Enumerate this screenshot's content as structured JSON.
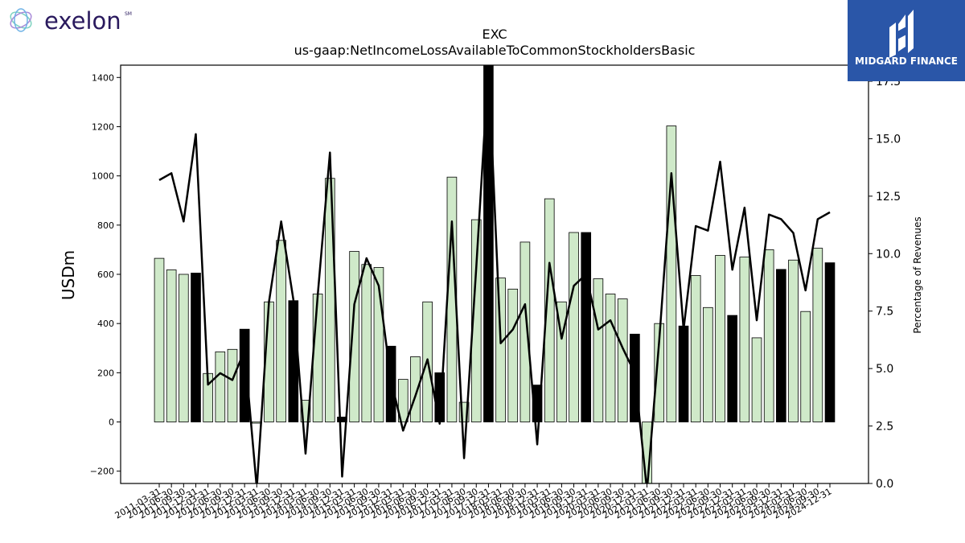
{
  "logos": {
    "left_brand": "exelon",
    "left_brand_mark": "SM",
    "right_brand": "MIDGARD FINANCE"
  },
  "colors": {
    "bar_fill": "#cfe9c9",
    "bar_highlight": "#000000",
    "line": "#000000",
    "left_logo_text": "#2a1a5e",
    "right_logo_bg": "#2a56a8"
  },
  "chart_data": {
    "type": "bar",
    "title": "EXC",
    "subtitle": "us-gaap:NetIncomeLossAvailableToCommonStockholdersBasic",
    "ylabel": "USDm",
    "y2label": "Percentage of Revenues",
    "ylim": [
      -250,
      1450
    ],
    "y2lim": [
      0,
      18.2
    ],
    "yticks": [
      -200,
      0,
      200,
      400,
      600,
      800,
      1000,
      1200,
      1400
    ],
    "y2ticks": [
      "0.0",
      "2.5",
      "5.0",
      "7.5",
      "10.0",
      "12.5",
      "15.0",
      "17.5"
    ],
    "grid": false,
    "categories": [
      "2011-03-31",
      "2011-06-30",
      "2011-09-30",
      "2011-12-31",
      "2012-03-31",
      "2012-06-30",
      "2012-09-30",
      "2012-12-31",
      "2013-03-31",
      "2013-06-30",
      "2013-09-30",
      "2013-12-31",
      "2014-03-31",
      "2014-06-30",
      "2014-09-30",
      "2014-12-31",
      "2015-03-31",
      "2015-06-30",
      "2015-09-30",
      "2015-12-31",
      "2016-03-31",
      "2016-06-30",
      "2016-09-30",
      "2016-12-31",
      "2017-03-31",
      "2017-06-30",
      "2017-09-30",
      "2017-12-31",
      "2018-03-31",
      "2018-06-30",
      "2018-09-30",
      "2018-12-31",
      "2019-03-31",
      "2019-06-30",
      "2019-09-30",
      "2019-12-31",
      "2020-03-31",
      "2020-06-30",
      "2020-09-30",
      "2020-12-31",
      "2021-03-31",
      "2021-06-30",
      "2021-09-30",
      "2021-12-31",
      "2022-03-31",
      "2022-06-30",
      "2022-09-30",
      "2022-12-31",
      "2023-03-31",
      "2023-06-30",
      "2023-09-30",
      "2023-12-31",
      "2024-03-31",
      "2024-06-30",
      "2024-09-30",
      "2024-12-31"
    ],
    "series": [
      {
        "role": "bars",
        "values": [
          665,
          618,
          600,
          605,
          197,
          285,
          295,
          377,
          -5,
          488,
          738,
          493,
          88,
          520,
          990,
          20,
          693,
          640,
          628,
          308,
          173,
          265,
          488,
          200,
          995,
          80,
          822,
          1450,
          585,
          540,
          731,
          150,
          907,
          488,
          770,
          770,
          582,
          520,
          500,
          357,
          -250,
          400,
          1203,
          390,
          595,
          465,
          677,
          433,
          670,
          342,
          700,
          620,
          658,
          449,
          706,
          647
        ],
        "highlight_every": 4,
        "highlight_offset": 3
      },
      {
        "role": "line",
        "axis": "right",
        "values": [
          13.2,
          13.5,
          11.4,
          15.2,
          4.3,
          4.8,
          4.5,
          5.8,
          -0.2,
          7.9,
          11.4,
          8.0,
          1.3,
          8.2,
          14.4,
          0.3,
          7.8,
          9.8,
          8.6,
          4.5,
          2.3,
          3.8,
          5.4,
          2.6,
          11.4,
          1.1,
          9.4,
          18.2,
          6.1,
          6.7,
          7.8,
          1.7,
          9.6,
          6.3,
          8.6,
          9.1,
          6.7,
          7.1,
          5.9,
          4.8,
          -0.3,
          6.2,
          13.5,
          6.7,
          11.2,
          11.0,
          14.0,
          9.3,
          12.0,
          7.1,
          11.7,
          11.5,
          10.9,
          8.4,
          11.5,
          11.8
        ]
      }
    ]
  }
}
